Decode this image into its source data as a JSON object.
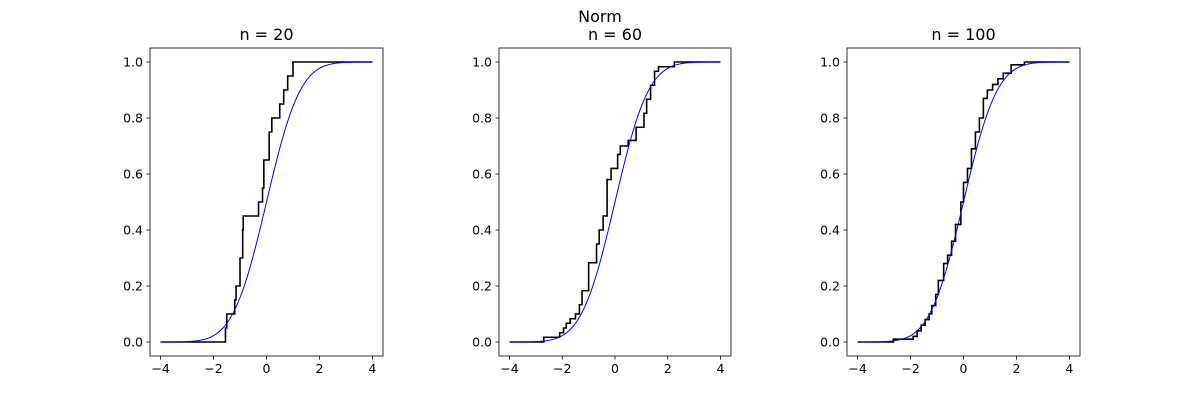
{
  "figure_title": "Norm",
  "chart_data": [
    {
      "type": "line",
      "title": "n = 20",
      "xlabel": "",
      "ylabel": "",
      "xlim": [
        -4.4,
        4.4
      ],
      "ylim": [
        -0.05,
        1.05
      ],
      "xticks": [
        -4,
        -2,
        0,
        2,
        4
      ],
      "yticks": [
        0.0,
        0.2,
        0.4,
        0.6,
        0.8,
        1.0
      ],
      "xtick_labels": [
        "−4",
        "−2",
        "0",
        "2",
        "4"
      ],
      "ytick_labels": [
        "0.0",
        "0.2",
        "0.4",
        "0.6",
        "0.8",
        "1.0"
      ],
      "grid": false,
      "series": [
        {
          "kind": "ecdf-step",
          "color": "#000000",
          "x_start": -4,
          "x_end": 4,
          "points": [
            [
              -1.55,
              0.05
            ],
            [
              -1.5,
              0.1
            ],
            [
              -1.2,
              0.15
            ],
            [
              -1.15,
              0.2
            ],
            [
              -1.0,
              0.3
            ],
            [
              -0.9,
              0.4
            ],
            [
              -0.88,
              0.45
            ],
            [
              -0.3,
              0.5
            ],
            [
              -0.15,
              0.55
            ],
            [
              -0.1,
              0.65
            ],
            [
              0.1,
              0.75
            ],
            [
              0.2,
              0.8
            ],
            [
              0.5,
              0.85
            ],
            [
              0.65,
              0.9
            ],
            [
              0.8,
              0.95
            ],
            [
              1.0,
              1.0
            ]
          ]
        },
        {
          "kind": "normal-cdf",
          "color": "#0000ff",
          "mu": 0,
          "sigma": 1,
          "x_start": -4,
          "x_end": 4
        }
      ]
    },
    {
      "type": "line",
      "title": "n = 60",
      "xlabel": "",
      "ylabel": "",
      "xlim": [
        -4.4,
        4.4
      ],
      "ylim": [
        -0.05,
        1.05
      ],
      "xticks": [
        -4,
        -2,
        0,
        2,
        4
      ],
      "yticks": [
        0.0,
        0.2,
        0.4,
        0.6,
        0.8,
        1.0
      ],
      "xtick_labels": [
        "−4",
        "−2",
        "0",
        "2",
        "4"
      ],
      "ytick_labels": [
        "0.0",
        "0.2",
        "0.4",
        "0.6",
        "0.8",
        "1.0"
      ],
      "grid": false,
      "series": [
        {
          "kind": "ecdf-step",
          "color": "#000000",
          "x_start": -4,
          "x_end": 4,
          "points": [
            [
              -2.7,
              0.017
            ],
            [
              -2.1,
              0.033
            ],
            [
              -1.95,
              0.05
            ],
            [
              -1.85,
              0.067
            ],
            [
              -1.7,
              0.083
            ],
            [
              -1.5,
              0.1
            ],
            [
              -1.35,
              0.133
            ],
            [
              -1.25,
              0.183
            ],
            [
              -1.0,
              0.283
            ],
            [
              -0.7,
              0.35
            ],
            [
              -0.6,
              0.4
            ],
            [
              -0.45,
              0.45
            ],
            [
              -0.3,
              0.58
            ],
            [
              -0.15,
              0.62
            ],
            [
              0.1,
              0.67
            ],
            [
              0.2,
              0.7
            ],
            [
              0.5,
              0.72
            ],
            [
              0.8,
              0.767
            ],
            [
              1.1,
              0.817
            ],
            [
              1.2,
              0.867
            ],
            [
              1.35,
              0.917
            ],
            [
              1.5,
              0.967
            ],
            [
              1.65,
              0.983
            ],
            [
              2.25,
              1.0
            ]
          ]
        },
        {
          "kind": "normal-cdf",
          "color": "#0000ff",
          "mu": 0,
          "sigma": 1,
          "x_start": -4,
          "x_end": 4
        }
      ]
    },
    {
      "type": "line",
      "title": "n = 100",
      "xlabel": "",
      "ylabel": "",
      "xlim": [
        -4.4,
        4.4
      ],
      "ylim": [
        -0.05,
        1.05
      ],
      "xticks": [
        -4,
        -2,
        0,
        2,
        4
      ],
      "yticks": [
        0.0,
        0.2,
        0.4,
        0.6,
        0.8,
        1.0
      ],
      "xtick_labels": [
        "−4",
        "−2",
        "0",
        "2",
        "4"
      ],
      "ytick_labels": [
        "0.0",
        "0.2",
        "0.4",
        "0.6",
        "0.8",
        "1.0"
      ],
      "grid": false,
      "series": [
        {
          "kind": "ecdf-step",
          "color": "#000000",
          "x_start": -4,
          "x_end": 4,
          "points": [
            [
              -2.65,
              0.01
            ],
            [
              -1.9,
              0.02
            ],
            [
              -1.75,
              0.04
            ],
            [
              -1.6,
              0.06
            ],
            [
              -1.45,
              0.08
            ],
            [
              -1.3,
              0.1
            ],
            [
              -1.2,
              0.13
            ],
            [
              -1.05,
              0.17
            ],
            [
              -0.95,
              0.22
            ],
            [
              -0.75,
              0.28
            ],
            [
              -0.6,
              0.31
            ],
            [
              -0.45,
              0.36
            ],
            [
              -0.3,
              0.42
            ],
            [
              -0.1,
              0.5
            ],
            [
              0.0,
              0.57
            ],
            [
              0.15,
              0.62
            ],
            [
              0.3,
              0.69
            ],
            [
              0.45,
              0.75
            ],
            [
              0.6,
              0.8
            ],
            [
              0.75,
              0.87
            ],
            [
              0.9,
              0.9
            ],
            [
              1.1,
              0.92
            ],
            [
              1.3,
              0.94
            ],
            [
              1.5,
              0.96
            ],
            [
              1.8,
              0.99
            ],
            [
              2.3,
              1.0
            ]
          ]
        },
        {
          "kind": "normal-cdf",
          "color": "#0000ff",
          "mu": 0,
          "sigma": 1,
          "x_start": -4,
          "x_end": 4
        }
      ]
    }
  ]
}
